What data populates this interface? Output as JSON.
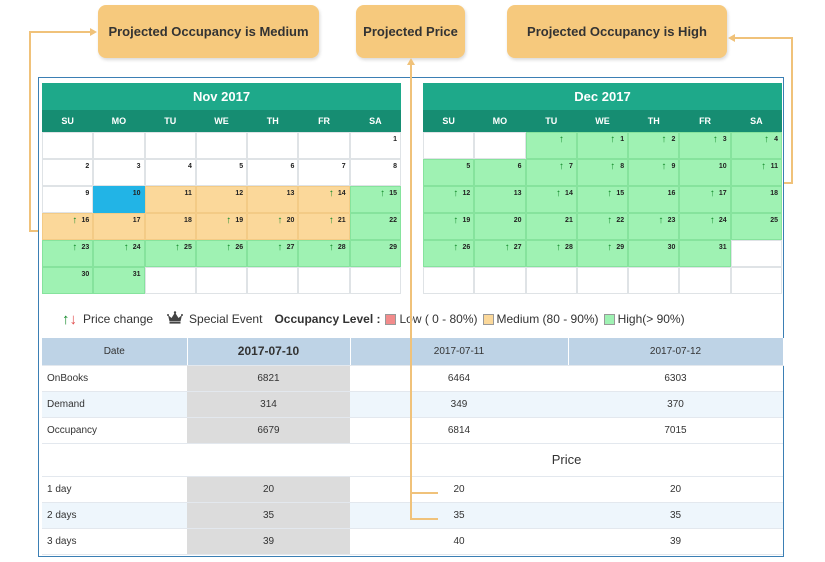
{
  "callouts": {
    "medium": "Projected Occupancy is Medium",
    "price": "Projected Price",
    "high": "Projected Occupancy is High"
  },
  "weekdays": [
    "SU",
    "MO",
    "TU",
    "WE",
    "TH",
    "FR",
    "SA"
  ],
  "calendars": [
    {
      "title": "Nov 2017",
      "cells": [
        {
          "d": "",
          "s": "empty"
        },
        {
          "d": "",
          "s": "empty"
        },
        {
          "d": "",
          "s": "empty"
        },
        {
          "d": "",
          "s": "empty"
        },
        {
          "d": "",
          "s": "empty"
        },
        {
          "d": "",
          "s": "empty"
        },
        {
          "d": "1",
          "s": "white"
        },
        {
          "d": "2",
          "s": "white"
        },
        {
          "d": "3",
          "s": "white"
        },
        {
          "d": "4",
          "s": "white"
        },
        {
          "d": "5",
          "s": "white"
        },
        {
          "d": "6",
          "s": "white"
        },
        {
          "d": "7",
          "s": "white"
        },
        {
          "d": "8",
          "s": "white"
        },
        {
          "d": "9",
          "s": "white"
        },
        {
          "d": "10",
          "s": "selected"
        },
        {
          "d": "11",
          "s": "medium"
        },
        {
          "d": "12",
          "s": "medium"
        },
        {
          "d": "13",
          "s": "medium"
        },
        {
          "d": "14",
          "s": "medium",
          "up": true
        },
        {
          "d": "15",
          "s": "high",
          "up": true
        },
        {
          "d": "16",
          "s": "medium",
          "up": true
        },
        {
          "d": "17",
          "s": "medium"
        },
        {
          "d": "18",
          "s": "medium"
        },
        {
          "d": "19",
          "s": "medium",
          "up": true
        },
        {
          "d": "20",
          "s": "medium",
          "up": true
        },
        {
          "d": "21",
          "s": "medium",
          "up": true
        },
        {
          "d": "22",
          "s": "high"
        },
        {
          "d": "23",
          "s": "high",
          "up": true
        },
        {
          "d": "24",
          "s": "high",
          "up": true
        },
        {
          "d": "25",
          "s": "high",
          "up": true
        },
        {
          "d": "26",
          "s": "high",
          "up": true
        },
        {
          "d": "27",
          "s": "high",
          "up": true
        },
        {
          "d": "28",
          "s": "high",
          "up": true
        },
        {
          "d": "29",
          "s": "high"
        },
        {
          "d": "30",
          "s": "high"
        },
        {
          "d": "31",
          "s": "high"
        },
        {
          "d": "",
          "s": "empty"
        },
        {
          "d": "",
          "s": "empty"
        },
        {
          "d": "",
          "s": "empty"
        },
        {
          "d": "",
          "s": "empty"
        },
        {
          "d": "",
          "s": "empty"
        }
      ]
    },
    {
      "title": "Dec 2017",
      "cells": [
        {
          "d": "",
          "s": "empty"
        },
        {
          "d": "",
          "s": "empty"
        },
        {
          "d": "",
          "s": "high",
          "up": true
        },
        {
          "d": "1",
          "s": "high",
          "up": true
        },
        {
          "d": "2",
          "s": "high",
          "up": true
        },
        {
          "d": "3",
          "s": "high",
          "up": true
        },
        {
          "d": "4",
          "s": "high",
          "up": true
        },
        {
          "d": "5",
          "s": "high"
        },
        {
          "d": "6",
          "s": "high"
        },
        {
          "d": "7",
          "s": "high",
          "up": true
        },
        {
          "d": "8",
          "s": "high",
          "up": true
        },
        {
          "d": "9",
          "s": "high",
          "up": true
        },
        {
          "d": "10",
          "s": "high"
        },
        {
          "d": "11",
          "s": "high",
          "up": true
        },
        {
          "d": "12",
          "s": "high",
          "up": true
        },
        {
          "d": "13",
          "s": "high"
        },
        {
          "d": "14",
          "s": "high",
          "up": true
        },
        {
          "d": "15",
          "s": "high",
          "up": true
        },
        {
          "d": "16",
          "s": "high"
        },
        {
          "d": "17",
          "s": "high",
          "up": true
        },
        {
          "d": "18",
          "s": "high"
        },
        {
          "d": "19",
          "s": "high",
          "up": true
        },
        {
          "d": "20",
          "s": "high"
        },
        {
          "d": "21",
          "s": "high"
        },
        {
          "d": "22",
          "s": "high",
          "up": true
        },
        {
          "d": "23",
          "s": "high",
          "up": true
        },
        {
          "d": "24",
          "s": "high",
          "up": true
        },
        {
          "d": "25",
          "s": "high"
        },
        {
          "d": "26",
          "s": "high",
          "up": true
        },
        {
          "d": "27",
          "s": "high",
          "up": true
        },
        {
          "d": "28",
          "s": "high",
          "up": true
        },
        {
          "d": "29",
          "s": "high",
          "up": true
        },
        {
          "d": "30",
          "s": "high"
        },
        {
          "d": "31",
          "s": "high"
        },
        {
          "d": "",
          "s": "empty"
        },
        {
          "d": "",
          "s": "empty"
        },
        {
          "d": "",
          "s": "empty"
        },
        {
          "d": "",
          "s": "empty"
        },
        {
          "d": "",
          "s": "empty"
        },
        {
          "d": "",
          "s": "empty"
        },
        {
          "d": "",
          "s": "empty"
        },
        {
          "d": "",
          "s": "empty"
        }
      ]
    }
  ],
  "legend": {
    "price_change": "Price change",
    "special_event": "Special Event",
    "occupancy_level": "Occupancy Level :",
    "low": "Low ( 0 - 80%)",
    "medium": "Medium (80 - 90%)",
    "high": "High(> 90%)",
    "colors": {
      "low": "#f28b8b",
      "medium": "#fbd89a",
      "high": "#9ff2b3"
    }
  },
  "table": {
    "date_label": "Date",
    "dates": [
      "2017-07-10",
      "2017-07-11",
      "2017-07-12"
    ],
    "rows": [
      {
        "label": "OnBooks",
        "values": [
          "6821",
          "6464",
          "6303"
        ]
      },
      {
        "label": "Demand",
        "values": [
          "314",
          "349",
          "370"
        ]
      },
      {
        "label": "Occupancy",
        "values": [
          "6679",
          "6814",
          "7015"
        ]
      }
    ],
    "price_title": "Price",
    "price_rows": [
      {
        "label": "1 day",
        "values": [
          "20",
          "20",
          "20"
        ]
      },
      {
        "label": "2 days",
        "values": [
          "35",
          "35",
          "35"
        ]
      },
      {
        "label": "3 days",
        "values": [
          "39",
          "40",
          "39"
        ]
      }
    ]
  }
}
